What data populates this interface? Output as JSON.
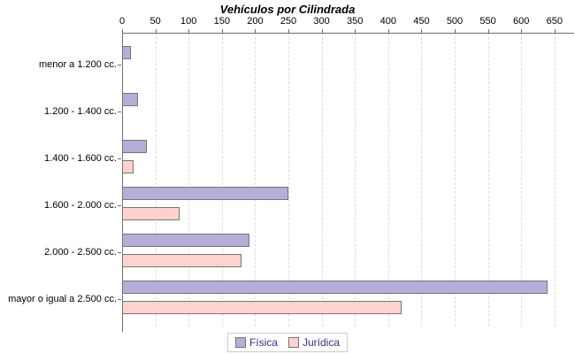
{
  "chart_data": {
    "type": "bar",
    "orientation": "horizontal",
    "title": "Vehículos por Cilindrada",
    "categories": [
      "menor a 1.200 cc.",
      "1.200 - 1.400 cc.",
      "1.400 - 1.600 cc.",
      "1.600 - 2.000 cc.",
      "2.000 - 2.500 cc.",
      "mayor o igual a 2.500 cc."
    ],
    "series": [
      {
        "name": "Física",
        "key": "fisica",
        "color": "#b6add8",
        "values": [
          13,
          24,
          37,
          250,
          192,
          640
        ]
      },
      {
        "name": "Jurídica",
        "key": "juridica",
        "color": "#ffd2d0",
        "values": [
          0,
          0,
          17,
          86,
          179,
          420
        ]
      }
    ],
    "x_axis": {
      "min": 0,
      "max": 650,
      "tick_step": 50,
      "ticks": [
        0,
        50,
        100,
        150,
        200,
        250,
        300,
        350,
        400,
        450,
        500,
        550,
        600,
        650
      ],
      "position": "top"
    },
    "grid": "vertical-dashed",
    "legend": {
      "position": "bottom",
      "entries": [
        "Física",
        "Jurídica"
      ]
    },
    "colors": {
      "bar_border": "#757575",
      "axis": "#6f6f6f",
      "gridline": "#dcdcdc",
      "legend_border": "#cbcbcb",
      "legend_text": "#3a2d7e",
      "title_text": "#000000",
      "tick_text": "#000000"
    }
  }
}
